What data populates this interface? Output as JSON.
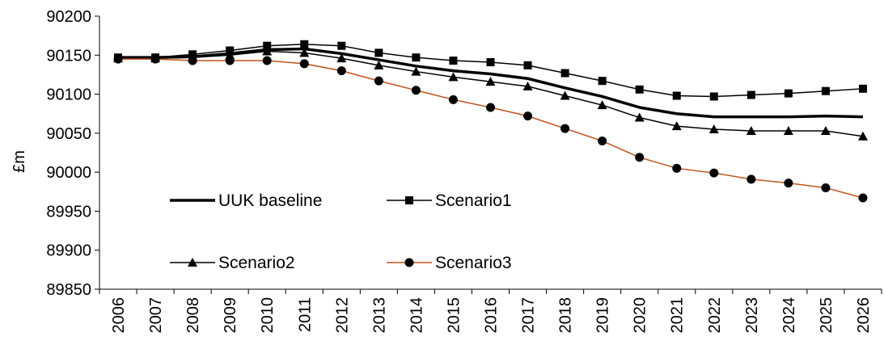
{
  "chart_data": {
    "type": "line",
    "title": "",
    "xlabel": "",
    "ylabel": "£m",
    "ylim": [
      89850,
      90200
    ],
    "yticks": [
      89850,
      89900,
      89950,
      90000,
      90050,
      90100,
      90150,
      90200
    ],
    "grid": false,
    "legend_position": "inside-lower-left",
    "categories": [
      "2006",
      "2007",
      "2008",
      "2009",
      "2010",
      "2011",
      "2012",
      "2013",
      "2014",
      "2015",
      "2016",
      "2017",
      "2018",
      "2019",
      "2020",
      "2021",
      "2022",
      "2023",
      "2024",
      "2025",
      "2026"
    ],
    "series": [
      {
        "name": "UUK baseline",
        "marker": "none",
        "color": "#000000",
        "values": [
          90147,
          90147,
          90148,
          90152,
          90157,
          90158,
          90152,
          90144,
          90136,
          90130,
          90126,
          90120,
          90108,
          90097,
          90083,
          90075,
          90071,
          90071,
          90071,
          90072,
          90071
        ]
      },
      {
        "name": "Scenario1",
        "marker": "square",
        "color": "#000000",
        "values": [
          90147,
          90147,
          90151,
          90156,
          90162,
          90164,
          90162,
          90153,
          90147,
          90143,
          90141,
          90137,
          90127,
          90117,
          90106,
          90098,
          90097,
          90099,
          90101,
          90104,
          90107
        ]
      },
      {
        "name": "Scenario2",
        "marker": "triangle",
        "color": "#000000",
        "values": [
          90146,
          90146,
          90147,
          90150,
          90155,
          90153,
          90146,
          90137,
          90129,
          90122,
          90116,
          90110,
          90098,
          90086,
          90070,
          90059,
          90055,
          90053,
          90053,
          90053,
          90046
        ]
      },
      {
        "name": "Scenario3",
        "marker": "circle",
        "color": "#c0521c",
        "values": [
          90145,
          90145,
          90143,
          90143,
          90143,
          90139,
          90130,
          90117,
          90105,
          90093,
          90083,
          90072,
          90056,
          90040,
          90019,
          90005,
          89999,
          89991,
          89986,
          89980,
          89967
        ]
      }
    ]
  }
}
